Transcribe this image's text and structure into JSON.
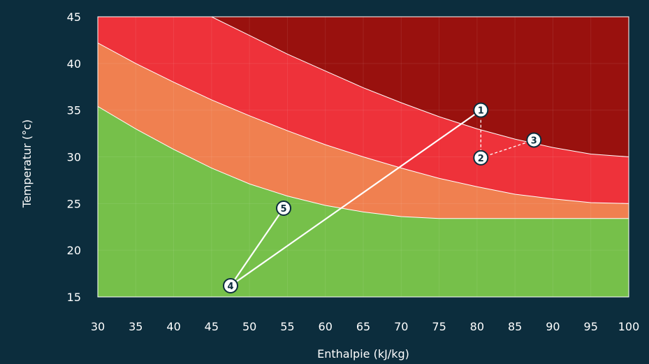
{
  "chart_data": {
    "type": "area",
    "xlabel": "Enthalpie (kJ/kg)",
    "ylabel": "Temperatur (°c)",
    "xlim": [
      30,
      100
    ],
    "ylim": [
      15,
      45
    ],
    "x_ticks": [
      30,
      35,
      40,
      45,
      50,
      55,
      60,
      65,
      70,
      75,
      80,
      85,
      90,
      95,
      100
    ],
    "y_ticks": [
      15,
      20,
      25,
      30,
      35,
      40,
      45
    ],
    "grid": true,
    "zones": [
      {
        "color": "#76c04a",
        "upper": [
          [
            30,
            35.4
          ],
          [
            35,
            33.0
          ],
          [
            40,
            30.8
          ],
          [
            45,
            28.8
          ],
          [
            50,
            27.1
          ],
          [
            55,
            25.8
          ],
          [
            60,
            24.8
          ],
          [
            65,
            24.1
          ],
          [
            70,
            23.6
          ],
          [
            75,
            23.4
          ],
          [
            80,
            23.4
          ],
          [
            85,
            23.4
          ],
          [
            90,
            23.4
          ],
          [
            95,
            23.4
          ],
          [
            100,
            23.4
          ]
        ]
      },
      {
        "color": "#f08050",
        "upper": [
          [
            30,
            42.2
          ],
          [
            35,
            40.0
          ],
          [
            40,
            38.0
          ],
          [
            45,
            36.1
          ],
          [
            50,
            34.4
          ],
          [
            55,
            32.8
          ],
          [
            60,
            31.3
          ],
          [
            65,
            30.0
          ],
          [
            70,
            28.8
          ],
          [
            75,
            27.7
          ],
          [
            80,
            26.8
          ],
          [
            85,
            26.0
          ],
          [
            90,
            25.5
          ],
          [
            95,
            25.1
          ],
          [
            100,
            25.0
          ]
        ]
      },
      {
        "color": "#ee323a",
        "upper": [
          [
            30,
            45.0
          ],
          [
            45,
            45.0
          ],
          [
            50,
            43.0
          ],
          [
            55,
            41.0
          ],
          [
            60,
            39.2
          ],
          [
            65,
            37.4
          ],
          [
            70,
            35.8
          ],
          [
            75,
            34.3
          ],
          [
            80,
            33.0
          ],
          [
            85,
            31.9
          ],
          [
            90,
            31.0
          ],
          [
            95,
            30.3
          ],
          [
            100,
            30.0
          ]
        ]
      },
      {
        "color": "#99110e",
        "upper": [
          [
            30,
            45.0
          ],
          [
            100,
            45.0
          ]
        ]
      }
    ],
    "points": [
      {
        "label": "1",
        "x": 80.5,
        "y": 35.0
      },
      {
        "label": "2",
        "x": 80.5,
        "y": 29.9
      },
      {
        "label": "3",
        "x": 87.5,
        "y": 31.8
      },
      {
        "label": "4",
        "x": 47.5,
        "y": 16.2
      },
      {
        "label": "5",
        "x": 54.5,
        "y": 24.5
      }
    ],
    "links": [
      {
        "from": "4",
        "to": "1",
        "style": "solid"
      },
      {
        "from": "4",
        "to": "5",
        "style": "solid"
      },
      {
        "from": "1",
        "to": "2",
        "style": "dashed"
      },
      {
        "from": "2",
        "to": "3",
        "style": "dashed"
      }
    ]
  }
}
